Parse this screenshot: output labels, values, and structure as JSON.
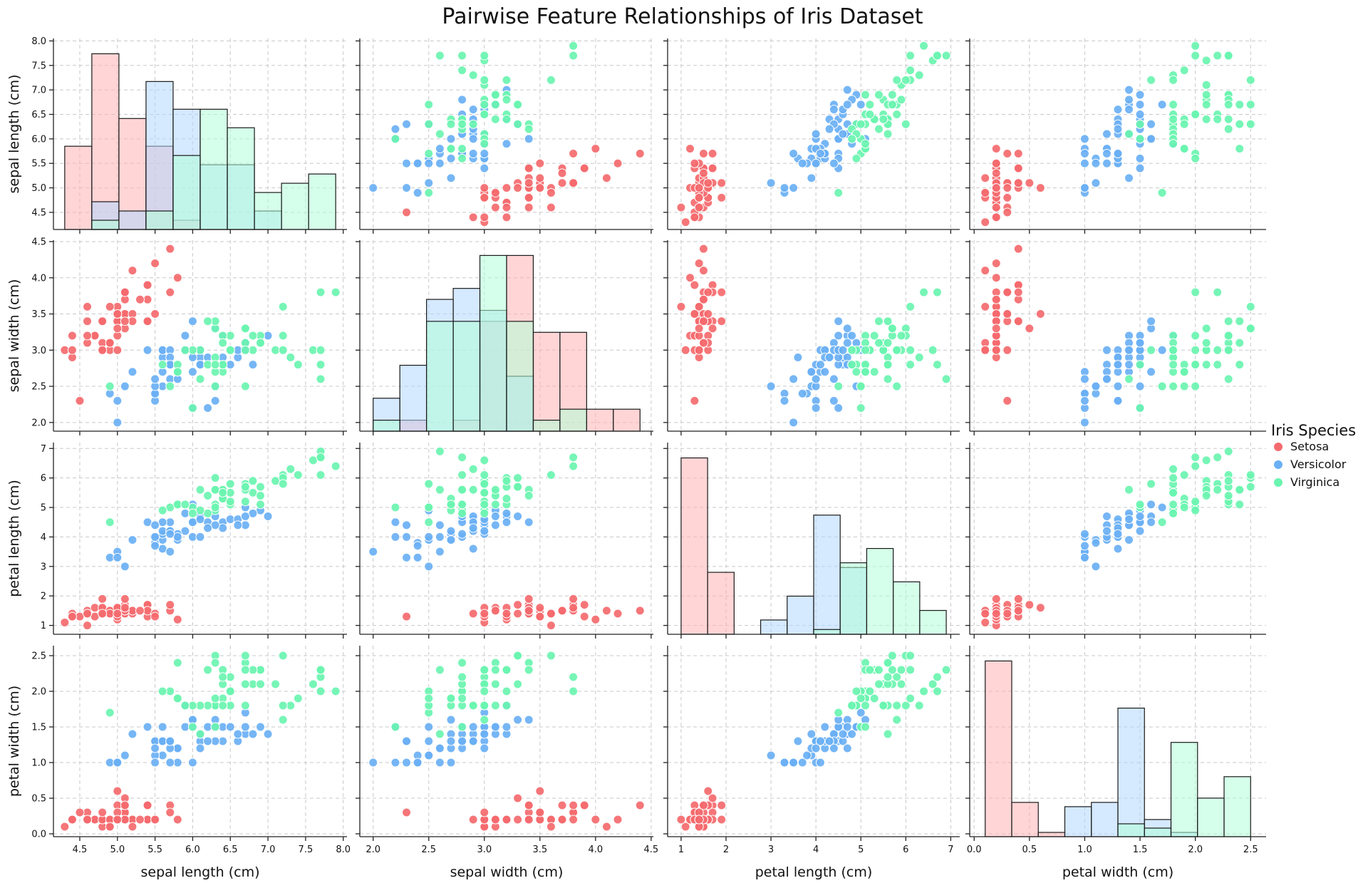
{
  "chart_data": {
    "type": "scatter",
    "title": "Pairwise Feature Relationships of Iris Dataset",
    "variables": [
      {
        "key": "sl",
        "label": "sepal length (cm)",
        "range": [
          4.15,
          8.05
        ],
        "ticks": [
          "4.5",
          "5.0",
          "5.5",
          "6.0",
          "6.5",
          "7.0",
          "7.5",
          "8.0"
        ],
        "yticks": [
          "4.5",
          "5.0",
          "5.5",
          "6.0",
          "6.5",
          "7.0",
          "7.5",
          "8.0"
        ]
      },
      {
        "key": "sw",
        "label": "sepal width (cm)",
        "range": [
          1.88,
          4.52
        ],
        "ticks": [
          "2.0",
          "2.5",
          "3.0",
          "3.5",
          "4.0",
          "4.5"
        ],
        "yticks": [
          "2.0",
          "2.5",
          "3.0",
          "3.5",
          "4.0",
          "4.5"
        ]
      },
      {
        "key": "pl",
        "label": "petal length (cm)",
        "range": [
          0.7,
          7.2
        ],
        "ticks": [
          "1",
          "2",
          "3",
          "4",
          "5",
          "6",
          "7"
        ],
        "yticks": [
          "1",
          "2",
          "3",
          "4",
          "5",
          "6",
          "7"
        ]
      },
      {
        "key": "pw",
        "label": "petal width (cm)",
        "range": [
          -0.04,
          2.64
        ],
        "ticks": [
          "0.0",
          "0.5",
          "1.0",
          "1.5",
          "2.0",
          "2.5"
        ],
        "yticks": [
          "0.0",
          "0.5",
          "1.0",
          "1.5",
          "2.0",
          "2.5"
        ]
      }
    ],
    "legend": {
      "title": "Iris Species",
      "position": "right",
      "items": [
        {
          "name": "Setosa",
          "color": "#f46a6e"
        },
        {
          "name": "Versicolor",
          "color": "#6ab0f4"
        },
        {
          "name": "Virginica",
          "color": "#6af4b0"
        }
      ]
    },
    "grid": true,
    "species": [
      {
        "name": "Setosa",
        "color": "#f46a6e",
        "hist_color": "#ffb3b5",
        "samples": [
          [
            5.1,
            3.5,
            1.4,
            0.2
          ],
          [
            4.9,
            3.0,
            1.4,
            0.2
          ],
          [
            4.7,
            3.2,
            1.3,
            0.2
          ],
          [
            4.6,
            3.1,
            1.5,
            0.2
          ],
          [
            5.0,
            3.6,
            1.4,
            0.2
          ],
          [
            5.4,
            3.9,
            1.7,
            0.4
          ],
          [
            4.6,
            3.4,
            1.4,
            0.3
          ],
          [
            5.0,
            3.4,
            1.5,
            0.2
          ],
          [
            4.4,
            2.9,
            1.4,
            0.2
          ],
          [
            4.9,
            3.1,
            1.5,
            0.1
          ],
          [
            5.4,
            3.7,
            1.5,
            0.2
          ],
          [
            4.8,
            3.4,
            1.6,
            0.2
          ],
          [
            4.8,
            3.0,
            1.4,
            0.1
          ],
          [
            4.3,
            3.0,
            1.1,
            0.1
          ],
          [
            5.8,
            4.0,
            1.2,
            0.2
          ],
          [
            5.7,
            4.4,
            1.5,
            0.4
          ],
          [
            5.4,
            3.9,
            1.3,
            0.4
          ],
          [
            5.1,
            3.5,
            1.4,
            0.3
          ],
          [
            5.7,
            3.8,
            1.7,
            0.3
          ],
          [
            5.1,
            3.8,
            1.5,
            0.3
          ],
          [
            5.4,
            3.4,
            1.7,
            0.2
          ],
          [
            5.1,
            3.7,
            1.5,
            0.4
          ],
          [
            4.6,
            3.6,
            1.0,
            0.2
          ],
          [
            5.1,
            3.3,
            1.7,
            0.5
          ],
          [
            4.8,
            3.4,
            1.9,
            0.2
          ],
          [
            5.0,
            3.0,
            1.6,
            0.2
          ],
          [
            5.0,
            3.4,
            1.6,
            0.4
          ],
          [
            5.2,
            3.5,
            1.5,
            0.2
          ],
          [
            5.2,
            3.4,
            1.4,
            0.2
          ],
          [
            4.7,
            3.2,
            1.6,
            0.2
          ],
          [
            4.8,
            3.1,
            1.6,
            0.2
          ],
          [
            5.4,
            3.4,
            1.5,
            0.4
          ],
          [
            5.2,
            4.1,
            1.5,
            0.1
          ],
          [
            5.5,
            4.2,
            1.4,
            0.2
          ],
          [
            4.9,
            3.1,
            1.5,
            0.2
          ],
          [
            5.0,
            3.2,
            1.2,
            0.2
          ],
          [
            5.5,
            3.5,
            1.3,
            0.2
          ],
          [
            4.9,
            3.6,
            1.4,
            0.1
          ],
          [
            4.4,
            3.0,
            1.3,
            0.2
          ],
          [
            5.1,
            3.4,
            1.5,
            0.2
          ],
          [
            5.0,
            3.5,
            1.3,
            0.3
          ],
          [
            4.5,
            2.3,
            1.3,
            0.3
          ],
          [
            4.4,
            3.2,
            1.3,
            0.2
          ],
          [
            5.0,
            3.5,
            1.6,
            0.6
          ],
          [
            5.1,
            3.8,
            1.9,
            0.4
          ],
          [
            4.8,
            3.0,
            1.4,
            0.3
          ],
          [
            5.1,
            3.8,
            1.6,
            0.2
          ],
          [
            4.6,
            3.2,
            1.4,
            0.2
          ],
          [
            5.3,
            3.7,
            1.5,
            0.2
          ],
          [
            5.0,
            3.3,
            1.4,
            0.2
          ]
        ]
      },
      {
        "name": "Versicolor",
        "color": "#6ab0f4",
        "hist_color": "#b3d7ff",
        "samples": [
          [
            7.0,
            3.2,
            4.7,
            1.4
          ],
          [
            6.4,
            3.2,
            4.5,
            1.5
          ],
          [
            6.9,
            3.1,
            4.9,
            1.5
          ],
          [
            5.5,
            2.3,
            4.0,
            1.3
          ],
          [
            6.5,
            2.8,
            4.6,
            1.5
          ],
          [
            5.7,
            2.8,
            4.5,
            1.3
          ],
          [
            6.3,
            3.3,
            4.7,
            1.6
          ],
          [
            4.9,
            2.4,
            3.3,
            1.0
          ],
          [
            6.6,
            2.9,
            4.6,
            1.3
          ],
          [
            5.2,
            2.7,
            3.9,
            1.4
          ],
          [
            5.0,
            2.0,
            3.5,
            1.0
          ],
          [
            5.9,
            3.0,
            4.2,
            1.5
          ],
          [
            6.0,
            2.2,
            4.0,
            1.0
          ],
          [
            6.1,
            2.9,
            4.7,
            1.4
          ],
          [
            5.6,
            2.9,
            3.6,
            1.3
          ],
          [
            6.7,
            3.1,
            4.4,
            1.4
          ],
          [
            5.6,
            3.0,
            4.5,
            1.5
          ],
          [
            5.8,
            2.7,
            4.1,
            1.0
          ],
          [
            6.2,
            2.2,
            4.5,
            1.5
          ],
          [
            5.6,
            2.5,
            3.9,
            1.1
          ],
          [
            5.9,
            3.2,
            4.8,
            1.8
          ],
          [
            6.1,
            2.8,
            4.0,
            1.3
          ],
          [
            6.3,
            2.5,
            4.9,
            1.5
          ],
          [
            6.1,
            2.8,
            4.7,
            1.2
          ],
          [
            6.4,
            2.9,
            4.3,
            1.3
          ],
          [
            6.6,
            3.0,
            4.4,
            1.4
          ],
          [
            6.8,
            2.8,
            4.8,
            1.4
          ],
          [
            6.7,
            3.0,
            5.0,
            1.7
          ],
          [
            6.0,
            2.9,
            4.5,
            1.5
          ],
          [
            5.7,
            2.6,
            3.5,
            1.0
          ],
          [
            5.5,
            2.4,
            3.8,
            1.1
          ],
          [
            5.5,
            2.4,
            3.7,
            1.0
          ],
          [
            5.8,
            2.7,
            3.9,
            1.2
          ],
          [
            6.0,
            2.7,
            5.1,
            1.6
          ],
          [
            5.4,
            3.0,
            4.5,
            1.5
          ],
          [
            6.0,
            3.4,
            4.5,
            1.6
          ],
          [
            6.7,
            3.1,
            4.7,
            1.5
          ],
          [
            6.3,
            2.3,
            4.4,
            1.3
          ],
          [
            5.6,
            3.0,
            4.1,
            1.3
          ],
          [
            5.5,
            2.5,
            4.0,
            1.3
          ],
          [
            5.5,
            2.6,
            4.4,
            1.2
          ],
          [
            6.1,
            3.0,
            4.6,
            1.4
          ],
          [
            5.8,
            2.6,
            4.0,
            1.2
          ],
          [
            5.0,
            2.3,
            3.3,
            1.0
          ],
          [
            5.6,
            2.7,
            4.2,
            1.3
          ],
          [
            5.7,
            3.0,
            4.2,
            1.2
          ],
          [
            5.7,
            2.9,
            4.2,
            1.3
          ],
          [
            6.2,
            2.9,
            4.3,
            1.3
          ],
          [
            5.1,
            2.5,
            3.0,
            1.1
          ],
          [
            5.7,
            2.8,
            4.1,
            1.3
          ]
        ]
      },
      {
        "name": "Virginica",
        "color": "#6af4b0",
        "hist_color": "#b3ffd9",
        "samples": [
          [
            6.3,
            3.3,
            6.0,
            2.5
          ],
          [
            5.8,
            2.7,
            5.1,
            1.9
          ],
          [
            7.1,
            3.0,
            5.9,
            2.1
          ],
          [
            6.3,
            2.9,
            5.6,
            1.8
          ],
          [
            6.5,
            3.0,
            5.8,
            2.2
          ],
          [
            7.6,
            3.0,
            6.6,
            2.1
          ],
          [
            4.9,
            2.5,
            4.5,
            1.7
          ],
          [
            7.3,
            2.9,
            6.3,
            1.8
          ],
          [
            6.7,
            2.5,
            5.8,
            1.8
          ],
          [
            7.2,
            3.6,
            6.1,
            2.5
          ],
          [
            6.5,
            3.2,
            5.1,
            2.0
          ],
          [
            6.4,
            2.7,
            5.3,
            1.9
          ],
          [
            6.8,
            3.0,
            5.5,
            2.1
          ],
          [
            5.7,
            2.5,
            5.0,
            2.0
          ],
          [
            5.8,
            2.8,
            5.1,
            2.4
          ],
          [
            6.4,
            3.2,
            5.3,
            2.3
          ],
          [
            6.5,
            3.0,
            5.5,
            1.8
          ],
          [
            7.7,
            3.8,
            6.7,
            2.2
          ],
          [
            7.7,
            2.6,
            6.9,
            2.3
          ],
          [
            6.0,
            2.2,
            5.0,
            1.5
          ],
          [
            6.9,
            3.2,
            5.7,
            2.3
          ],
          [
            5.6,
            2.8,
            4.9,
            2.0
          ],
          [
            7.7,
            2.8,
            6.7,
            2.0
          ],
          [
            6.3,
            2.7,
            4.9,
            1.8
          ],
          [
            6.7,
            3.3,
            5.7,
            2.1
          ],
          [
            7.2,
            3.2,
            6.0,
            1.8
          ],
          [
            6.2,
            2.8,
            4.8,
            1.8
          ],
          [
            6.1,
            3.0,
            4.9,
            1.8
          ],
          [
            6.4,
            2.8,
            5.6,
            2.1
          ],
          [
            7.2,
            3.0,
            5.8,
            1.6
          ],
          [
            7.4,
            2.8,
            6.1,
            1.9
          ],
          [
            7.9,
            3.8,
            6.4,
            2.0
          ],
          [
            6.4,
            2.8,
            5.6,
            2.2
          ],
          [
            6.3,
            2.8,
            5.1,
            1.5
          ],
          [
            6.1,
            2.6,
            5.6,
            1.4
          ],
          [
            7.7,
            3.0,
            6.1,
            2.3
          ],
          [
            6.3,
            3.4,
            5.6,
            2.4
          ],
          [
            6.4,
            3.1,
            5.5,
            1.8
          ],
          [
            6.0,
            3.0,
            4.8,
            1.8
          ],
          [
            6.9,
            3.1,
            5.4,
            2.1
          ],
          [
            6.7,
            3.1,
            5.6,
            2.4
          ],
          [
            6.9,
            3.1,
            5.1,
            2.3
          ],
          [
            5.8,
            2.7,
            5.1,
            1.9
          ],
          [
            6.8,
            3.2,
            5.9,
            2.3
          ],
          [
            6.7,
            3.3,
            5.7,
            2.5
          ],
          [
            6.7,
            3.0,
            5.2,
            2.3
          ],
          [
            6.3,
            2.5,
            5.0,
            1.9
          ],
          [
            6.5,
            3.0,
            5.2,
            2.0
          ],
          [
            6.2,
            3.4,
            5.4,
            2.3
          ],
          [
            5.9,
            3.0,
            5.1,
            1.8
          ]
        ]
      }
    ]
  }
}
